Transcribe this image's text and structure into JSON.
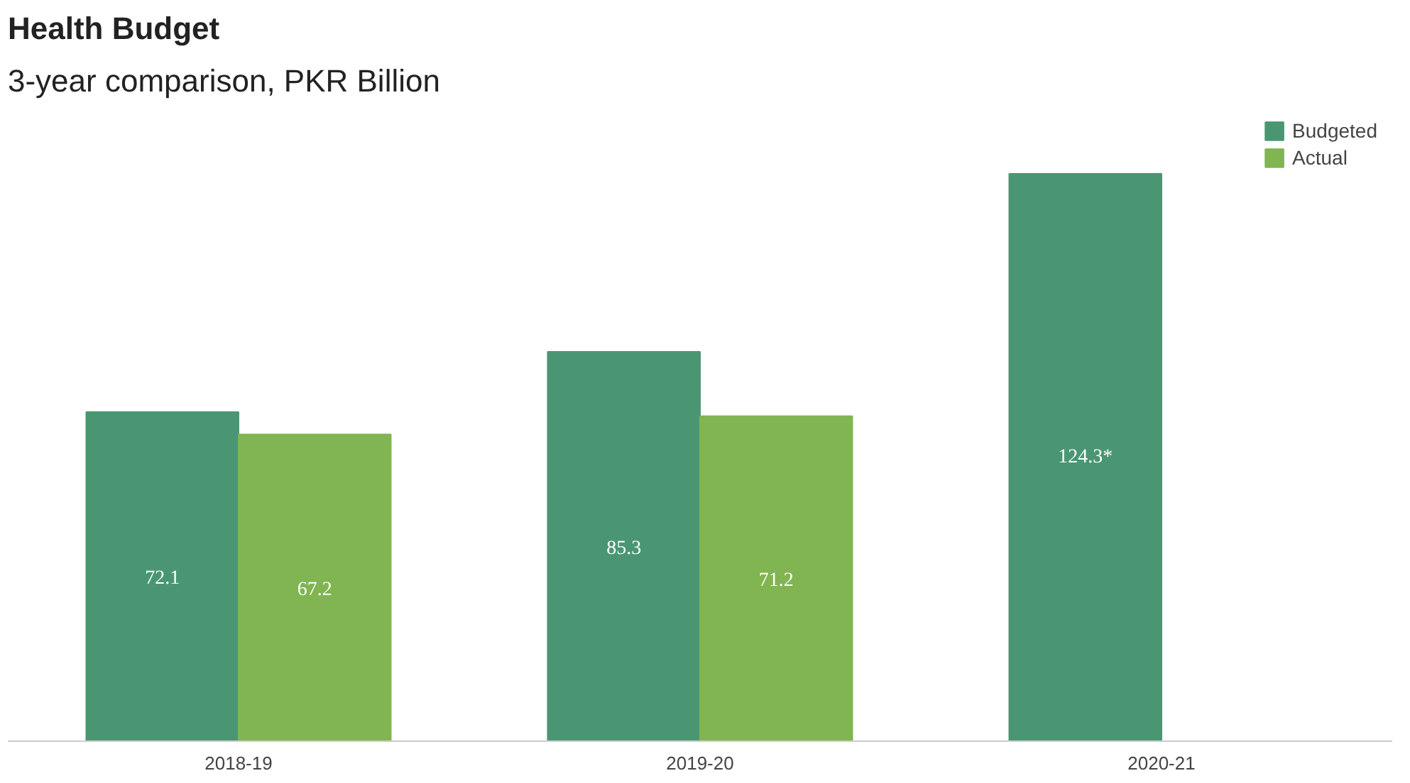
{
  "chart_data": {
    "type": "bar",
    "title": "Health Budget",
    "subtitle": "3-year comparison, PKR Billion",
    "categories": [
      "2018-19",
      "2019-20",
      "2020-21"
    ],
    "series": [
      {
        "name": "Budgeted",
        "color": "#4a9673",
        "values": [
          72.1,
          85.3,
          124.3
        ],
        "value_labels": [
          "72.1",
          "85.3",
          "124.3*"
        ]
      },
      {
        "name": "Actual",
        "color": "#80b552",
        "values": [
          67.2,
          71.2,
          null
        ],
        "value_labels": [
          "67.2",
          "71.2",
          null
        ]
      }
    ],
    "relative": false,
    "grid": false,
    "legend": "top right"
  }
}
